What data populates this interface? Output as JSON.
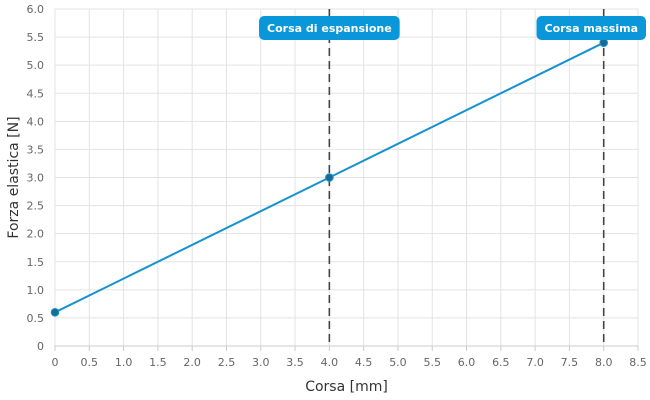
{
  "chart_data": {
    "type": "line",
    "title": "",
    "xlabel": "Corsa [mm]",
    "ylabel": "Forza elastica [N]",
    "xlim": [
      0,
      8.5
    ],
    "ylim": [
      0,
      6.0
    ],
    "x_ticks": [
      "0",
      "0.5",
      "1.0",
      "1.5",
      "2.0",
      "2.5",
      "3.0",
      "3.5",
      "4.0",
      "4.5",
      "5.0",
      "5.5",
      "6.0",
      "6.5",
      "7.0",
      "7.5",
      "8.0",
      "8.5"
    ],
    "y_ticks": [
      "0",
      "0.5",
      "1.0",
      "1.5",
      "2.0",
      "2.5",
      "3.0",
      "3.5",
      "4.0",
      "4.5",
      "5.0",
      "5.5",
      "6.0"
    ],
    "grid": true,
    "series": [
      {
        "color": "#1592d0",
        "marker_color": "#1a6a92",
        "points": [
          {
            "x": 0,
            "y": 0.6
          },
          {
            "x": 4.0,
            "y": 3.0
          },
          {
            "x": 8.0,
            "y": 5.4
          }
        ]
      }
    ],
    "annotations": [
      {
        "x": 4.0,
        "label": "Corsa di espansione",
        "color": "#0a97d9",
        "line_style": "dashed"
      },
      {
        "x": 8.0,
        "label": "Corsa massima",
        "color": "#0a97d9",
        "line_style": "dashed"
      }
    ]
  }
}
